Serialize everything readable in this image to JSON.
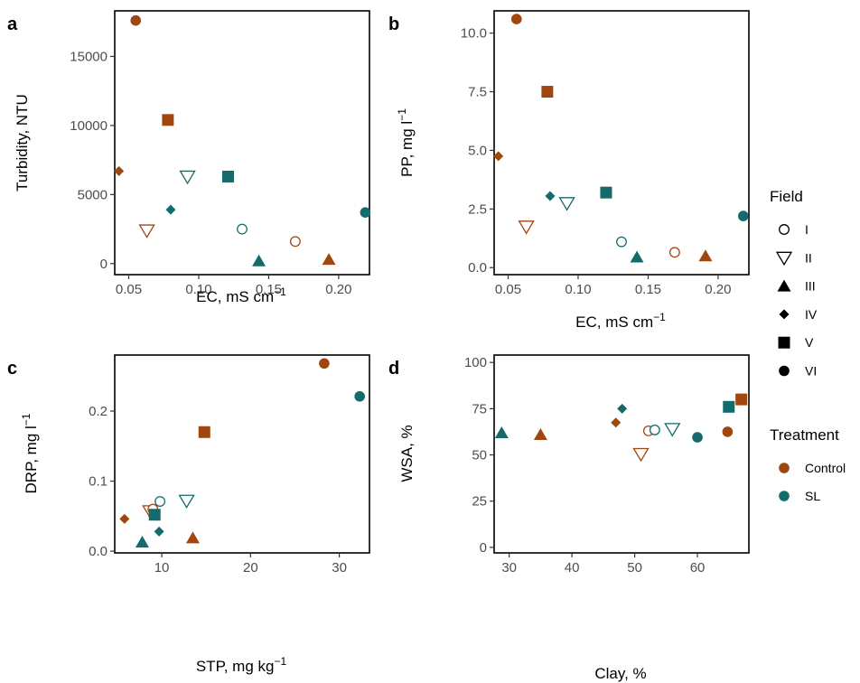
{
  "colors": {
    "Control": "#a0460f",
    "SL": "#136b6b"
  },
  "shapes": {
    "I": "circle-open",
    "II": "triangle-down-open",
    "III": "triangle-filled",
    "IV": "diamond-filled",
    "V": "square-filled",
    "VI": "circle-filled"
  },
  "legend": {
    "field_title": "Field",
    "fields": [
      "I",
      "II",
      "III",
      "IV",
      "V",
      "VI"
    ],
    "treatment_title": "Treatment",
    "treatments": [
      "Control",
      "SL"
    ]
  },
  "chart_data": [
    {
      "panel": "a",
      "type": "scatter",
      "xlabel": "EC, mS cm",
      "xlabel_sup": "−1",
      "ylabel": "Turbidity, NTU",
      "xlim": [
        0.04,
        0.222
      ],
      "ylim": [
        -800,
        18300
      ],
      "xticks": [
        0.05,
        0.1,
        0.15,
        0.2
      ],
      "xticklabels": [
        "0.05",
        "0.10",
        "0.15",
        "0.20"
      ],
      "yticks": [
        0,
        5000,
        10000,
        15000
      ],
      "yticklabels": [
        "0",
        "5000",
        "10000",
        "15000"
      ],
      "points": [
        {
          "x": 0.055,
          "y": 17600,
          "field": "VI",
          "treatment": "Control"
        },
        {
          "x": 0.078,
          "y": 10400,
          "field": "V",
          "treatment": "Control"
        },
        {
          "x": 0.043,
          "y": 6700,
          "field": "IV",
          "treatment": "Control"
        },
        {
          "x": 0.063,
          "y": 2400,
          "field": "II",
          "treatment": "Control"
        },
        {
          "x": 0.169,
          "y": 1600,
          "field": "I",
          "treatment": "Control"
        },
        {
          "x": 0.193,
          "y": 300,
          "field": "III",
          "treatment": "Control"
        },
        {
          "x": 0.092,
          "y": 6300,
          "field": "II",
          "treatment": "SL"
        },
        {
          "x": 0.121,
          "y": 6300,
          "field": "V",
          "treatment": "SL"
        },
        {
          "x": 0.08,
          "y": 3900,
          "field": "IV",
          "treatment": "SL"
        },
        {
          "x": 0.131,
          "y": 2500,
          "field": "I",
          "treatment": "SL"
        },
        {
          "x": 0.143,
          "y": 200,
          "field": "III",
          "treatment": "SL"
        },
        {
          "x": 0.219,
          "y": 3700,
          "field": "VI",
          "treatment": "SL"
        }
      ]
    },
    {
      "panel": "b",
      "type": "scatter",
      "xlabel": "EC, mS cm",
      "xlabel_sup": "−1",
      "ylabel": "PP, mg l",
      "ylabel_sup": "−1",
      "xlim": [
        0.04,
        0.222
      ],
      "ylim": [
        -0.3,
        10.95
      ],
      "xticks": [
        0.05,
        0.1,
        0.15,
        0.2
      ],
      "xticklabels": [
        "0.05",
        "0.10",
        "0.15",
        "0.20"
      ],
      "yticks": [
        0,
        2.5,
        5,
        7.5,
        10
      ],
      "yticklabels": [
        "0.0",
        "2.5",
        "5.0",
        "7.5",
        "10.0"
      ],
      "points": [
        {
          "x": 0.056,
          "y": 10.6,
          "field": "VI",
          "treatment": "Control"
        },
        {
          "x": 0.078,
          "y": 7.5,
          "field": "V",
          "treatment": "Control"
        },
        {
          "x": 0.043,
          "y": 4.75,
          "field": "IV",
          "treatment": "Control"
        },
        {
          "x": 0.063,
          "y": 1.75,
          "field": "II",
          "treatment": "Control"
        },
        {
          "x": 0.169,
          "y": 0.65,
          "field": "I",
          "treatment": "Control"
        },
        {
          "x": 0.191,
          "y": 0.5,
          "field": "III",
          "treatment": "Control"
        },
        {
          "x": 0.092,
          "y": 2.75,
          "field": "II",
          "treatment": "SL"
        },
        {
          "x": 0.12,
          "y": 3.2,
          "field": "V",
          "treatment": "SL"
        },
        {
          "x": 0.08,
          "y": 3.05,
          "field": "IV",
          "treatment": "SL"
        },
        {
          "x": 0.131,
          "y": 1.1,
          "field": "I",
          "treatment": "SL"
        },
        {
          "x": 0.142,
          "y": 0.45,
          "field": "III",
          "treatment": "SL"
        },
        {
          "x": 0.218,
          "y": 2.2,
          "field": "VI",
          "treatment": "SL"
        }
      ]
    },
    {
      "panel": "c",
      "type": "scatter",
      "xlabel": "STP, mg kg",
      "xlabel_sup": "−1",
      "ylabel": "DRP, mg l",
      "ylabel_sup": "−1",
      "xlim": [
        4.7,
        33.4
      ],
      "ylim": [
        -0.0025,
        0.28
      ],
      "xticks": [
        10,
        20,
        30
      ],
      "xticklabels": [
        "10",
        "20",
        "30"
      ],
      "yticks": [
        0,
        0.1,
        0.2
      ],
      "yticklabels": [
        "0.0",
        "0.1",
        "0.2"
      ],
      "points": [
        {
          "x": 28.3,
          "y": 0.268,
          "field": "VI",
          "treatment": "Control"
        },
        {
          "x": 14.8,
          "y": 0.17,
          "field": "V",
          "treatment": "Control"
        },
        {
          "x": 5.8,
          "y": 0.046,
          "field": "IV",
          "treatment": "Control"
        },
        {
          "x": 8.7,
          "y": 0.057,
          "field": "II",
          "treatment": "Control"
        },
        {
          "x": 9.0,
          "y": 0.06,
          "field": "I",
          "treatment": "Control"
        },
        {
          "x": 13.5,
          "y": 0.019,
          "field": "III",
          "treatment": "Control"
        },
        {
          "x": 32.3,
          "y": 0.221,
          "field": "VI",
          "treatment": "SL"
        },
        {
          "x": 9.2,
          "y": 0.052,
          "field": "V",
          "treatment": "SL"
        },
        {
          "x": 9.8,
          "y": 0.071,
          "field": "I",
          "treatment": "SL"
        },
        {
          "x": 12.8,
          "y": 0.072,
          "field": "II",
          "treatment": "SL"
        },
        {
          "x": 9.7,
          "y": 0.028,
          "field": "IV",
          "treatment": "SL"
        },
        {
          "x": 7.8,
          "y": 0.013,
          "field": "III",
          "treatment": "SL"
        }
      ]
    },
    {
      "panel": "d",
      "type": "scatter",
      "xlabel": "Clay, %",
      "ylabel": "WSA, %",
      "xlim": [
        27.6,
        68.2
      ],
      "ylim": [
        -3,
        104
      ],
      "xticks": [
        30,
        40,
        50,
        60
      ],
      "xticklabels": [
        "30",
        "40",
        "50",
        "60"
      ],
      "yticks": [
        0,
        25,
        50,
        75,
        100
      ],
      "yticklabels": [
        "0",
        "25",
        "50",
        "75",
        "100"
      ],
      "points": [
        {
          "x": 67.0,
          "y": 80,
          "field": "V",
          "treatment": "Control"
        },
        {
          "x": 47.0,
          "y": 67.5,
          "field": "IV",
          "treatment": "Control"
        },
        {
          "x": 35.0,
          "y": 61,
          "field": "III",
          "treatment": "Control"
        },
        {
          "x": 51.0,
          "y": 50.5,
          "field": "II",
          "treatment": "Control"
        },
        {
          "x": 52.2,
          "y": 63,
          "field": "I",
          "treatment": "Control"
        },
        {
          "x": 64.8,
          "y": 62.5,
          "field": "VI",
          "treatment": "Control"
        },
        {
          "x": 65.0,
          "y": 76,
          "field": "V",
          "treatment": "SL"
        },
        {
          "x": 48.0,
          "y": 75,
          "field": "IV",
          "treatment": "SL"
        },
        {
          "x": 28.8,
          "y": 62,
          "field": "III",
          "treatment": "SL"
        },
        {
          "x": 53.2,
          "y": 63.5,
          "field": "I",
          "treatment": "SL"
        },
        {
          "x": 56.0,
          "y": 64,
          "field": "II",
          "treatment": "SL"
        },
        {
          "x": 60.0,
          "y": 59.5,
          "field": "VI",
          "treatment": "SL"
        }
      ]
    }
  ]
}
